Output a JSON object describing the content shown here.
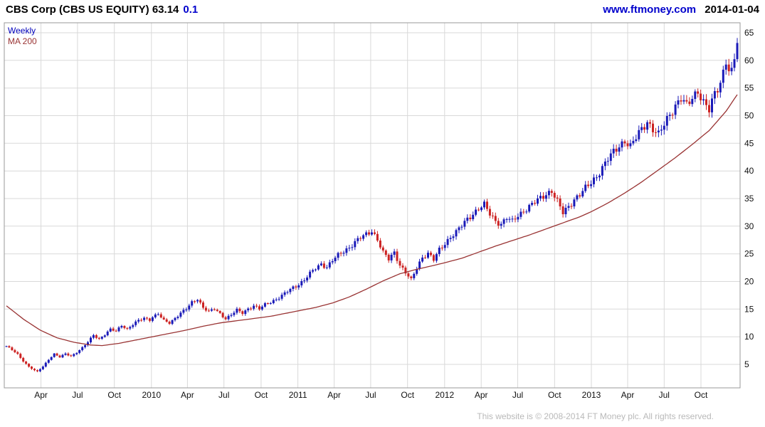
{
  "header": {
    "title": "CBS Corp (CBS US EQUITY) 63.14",
    "change": "0.1",
    "link": "www.ftmoney.com",
    "date": "2014-01-04"
  },
  "legend": {
    "series1": "Weekly",
    "series2": "MA 200"
  },
  "footer": {
    "copyright": "This website is © 2008-2014 FT Money plc. All rights reserved."
  },
  "colors": {
    "up": "#1a1ab8",
    "down": "#cc2222",
    "ma": "#993333",
    "grid": "#d9d9d9",
    "border": "#999999",
    "axis_text": "#111111",
    "link": "#0000cc",
    "footer_text": "#b9b9b9"
  },
  "chart_data": {
    "type": "candlestick",
    "instrument": "CBS Corp (CBS US EQUITY)",
    "timeframe": "Weekly",
    "last_price": 63.14,
    "change": 0.1,
    "series": [
      {
        "name": "Weekly",
        "type": "candlestick"
      },
      {
        "name": "MA 200",
        "type": "line"
      }
    ],
    "ylim": [
      0.5,
      66.8
    ],
    "y_ticks": [
      5,
      10,
      15,
      20,
      25,
      30,
      35,
      40,
      45,
      50,
      55,
      60,
      65
    ],
    "x_ticks": [
      {
        "week": 12.3,
        "label": "Apr"
      },
      {
        "week": 25.3,
        "label": "Jul"
      },
      {
        "week": 38.4,
        "label": "Oct"
      },
      {
        "week": 51.6,
        "label": "2010"
      },
      {
        "week": 64.4,
        "label": "Apr"
      },
      {
        "week": 77.4,
        "label": "Jul"
      },
      {
        "week": 90.6,
        "label": "Oct"
      },
      {
        "week": 103.7,
        "label": "2011"
      },
      {
        "week": 116.6,
        "label": "Apr"
      },
      {
        "week": 129.6,
        "label": "Jul"
      },
      {
        "week": 142.7,
        "label": "Oct"
      },
      {
        "week": 155.9,
        "label": "2012"
      },
      {
        "week": 168.9,
        "label": "Apr"
      },
      {
        "week": 181.9,
        "label": "Jul"
      },
      {
        "week": 195.0,
        "label": "Oct"
      },
      {
        "week": 208.1,
        "label": "2013"
      },
      {
        "week": 221.0,
        "label": "Apr"
      },
      {
        "week": 234.0,
        "label": "Jul"
      },
      {
        "week": 247.1,
        "label": "Oct"
      }
    ],
    "weeks_total": 261,
    "price_anchors": [
      [
        0,
        8.3
      ],
      [
        2,
        7.6
      ],
      [
        4,
        6.8
      ],
      [
        6,
        5.6
      ],
      [
        8,
        4.6
      ],
      [
        10,
        3.9
      ],
      [
        11,
        3.7
      ],
      [
        13,
        4.6
      ],
      [
        15,
        5.9
      ],
      [
        17,
        6.9
      ],
      [
        19,
        6.3
      ],
      [
        21,
        6.9
      ],
      [
        23,
        6.5
      ],
      [
        25,
        7.2
      ],
      [
        27,
        8.0
      ],
      [
        29,
        9.0
      ],
      [
        31,
        10.3
      ],
      [
        33,
        9.6
      ],
      [
        35,
        10.4
      ],
      [
        37,
        11.3
      ],
      [
        39,
        11.0
      ],
      [
        41,
        12.1
      ],
      [
        43,
        11.4
      ],
      [
        45,
        12.2
      ],
      [
        47,
        12.9
      ],
      [
        49,
        13.4
      ],
      [
        51,
        13.1
      ],
      [
        52,
        13.6
      ],
      [
        54,
        14.1
      ],
      [
        56,
        12.9
      ],
      [
        58,
        12.5
      ],
      [
        60,
        13.4
      ],
      [
        62,
        14.3
      ],
      [
        64,
        15.0
      ],
      [
        66,
        16.2
      ],
      [
        68,
        16.9
      ],
      [
        70,
        15.3
      ],
      [
        72,
        14.5
      ],
      [
        74,
        15.0
      ],
      [
        76,
        14.2
      ],
      [
        78,
        13.3
      ],
      [
        80,
        14.0
      ],
      [
        82,
        14.8
      ],
      [
        84,
        14.3
      ],
      [
        86,
        15.1
      ],
      [
        88,
        15.6
      ],
      [
        90,
        15.0
      ],
      [
        92,
        15.8
      ],
      [
        94,
        16.3
      ],
      [
        96,
        16.8
      ],
      [
        98,
        17.4
      ],
      [
        100,
        18.2
      ],
      [
        102,
        18.9
      ],
      [
        104,
        19.5
      ],
      [
        106,
        20.3
      ],
      [
        108,
        21.4
      ],
      [
        110,
        22.4
      ],
      [
        112,
        23.2
      ],
      [
        114,
        22.6
      ],
      [
        116,
        23.8
      ],
      [
        118,
        24.7
      ],
      [
        120,
        25.5
      ],
      [
        122,
        26.2
      ],
      [
        124,
        27.1
      ],
      [
        126,
        27.9
      ],
      [
        128,
        28.5
      ],
      [
        130,
        29.2
      ],
      [
        132,
        27.6
      ],
      [
        134,
        25.2
      ],
      [
        136,
        24.0
      ],
      [
        138,
        25.3
      ],
      [
        140,
        23.0
      ],
      [
        142,
        21.6
      ],
      [
        144,
        20.2
      ],
      [
        146,
        22.5
      ],
      [
        148,
        24.4
      ],
      [
        150,
        25.1
      ],
      [
        152,
        23.9
      ],
      [
        154,
        25.7
      ],
      [
        156,
        26.9
      ],
      [
        158,
        28.1
      ],
      [
        160,
        28.9
      ],
      [
        162,
        30.1
      ],
      [
        164,
        31.3
      ],
      [
        166,
        32.3
      ],
      [
        168,
        33.2
      ],
      [
        170,
        33.8
      ],
      [
        172,
        32.2
      ],
      [
        174,
        31.0
      ],
      [
        176,
        30.4
      ],
      [
        178,
        31.5
      ],
      [
        180,
        30.8
      ],
      [
        182,
        32.0
      ],
      [
        184,
        32.8
      ],
      [
        186,
        33.5
      ],
      [
        188,
        34.3
      ],
      [
        190,
        35.1
      ],
      [
        192,
        35.9
      ],
      [
        194,
        36.4
      ],
      [
        196,
        34.4
      ],
      [
        198,
        32.4
      ],
      [
        200,
        33.6
      ],
      [
        202,
        34.9
      ],
      [
        204,
        35.7
      ],
      [
        206,
        36.8
      ],
      [
        208,
        37.9
      ],
      [
        210,
        39.1
      ],
      [
        212,
        40.6
      ],
      [
        214,
        42.1
      ],
      [
        216,
        43.4
      ],
      [
        218,
        44.6
      ],
      [
        220,
        45.5
      ],
      [
        222,
        44.3
      ],
      [
        224,
        46.0
      ],
      [
        226,
        47.7
      ],
      [
        228,
        49.0
      ],
      [
        230,
        47.5
      ],
      [
        232,
        46.4
      ],
      [
        234,
        48.5
      ],
      [
        236,
        50.4
      ],
      [
        238,
        51.8
      ],
      [
        240,
        53.0
      ],
      [
        242,
        51.7
      ],
      [
        244,
        53.4
      ],
      [
        246,
        54.6
      ],
      [
        248,
        52.3
      ],
      [
        250,
        50.9
      ],
      [
        252,
        54.0
      ],
      [
        254,
        56.2
      ],
      [
        255,
        58.0
      ],
      [
        256,
        60.0
      ],
      [
        257,
        58.2
      ],
      [
        258,
        57.6
      ],
      [
        259,
        60.1
      ],
      [
        260,
        63.14
      ]
    ],
    "ma200_anchors": [
      [
        0,
        15.6
      ],
      [
        6,
        13.2
      ],
      [
        12,
        11.2
      ],
      [
        18,
        9.8
      ],
      [
        24,
        9.0
      ],
      [
        30,
        8.5
      ],
      [
        34,
        8.4
      ],
      [
        40,
        8.8
      ],
      [
        46,
        9.4
      ],
      [
        52,
        10.0
      ],
      [
        58,
        10.6
      ],
      [
        64,
        11.2
      ],
      [
        70,
        11.9
      ],
      [
        76,
        12.5
      ],
      [
        82,
        12.9
      ],
      [
        88,
        13.3
      ],
      [
        94,
        13.7
      ],
      [
        100,
        14.3
      ],
      [
        104,
        14.7
      ],
      [
        110,
        15.3
      ],
      [
        116,
        16.1
      ],
      [
        122,
        17.2
      ],
      [
        128,
        18.6
      ],
      [
        134,
        20.1
      ],
      [
        140,
        21.4
      ],
      [
        146,
        22.2
      ],
      [
        152,
        22.9
      ],
      [
        156,
        23.4
      ],
      [
        162,
        24.2
      ],
      [
        168,
        25.3
      ],
      [
        174,
        26.4
      ],
      [
        180,
        27.4
      ],
      [
        186,
        28.4
      ],
      [
        192,
        29.5
      ],
      [
        198,
        30.6
      ],
      [
        204,
        31.7
      ],
      [
        208,
        32.6
      ],
      [
        214,
        34.2
      ],
      [
        220,
        36.0
      ],
      [
        226,
        38.0
      ],
      [
        232,
        40.2
      ],
      [
        238,
        42.4
      ],
      [
        244,
        44.8
      ],
      [
        250,
        47.3
      ],
      [
        256,
        50.8
      ],
      [
        260,
        53.8
      ]
    ],
    "noise": {
      "amp_rel": 0.013,
      "f1": 1.93,
      "f2": 0.71,
      "wick_abs": 0.12,
      "wick_rel": 0.016,
      "f3": 2.77,
      "f4": 3.31
    }
  }
}
